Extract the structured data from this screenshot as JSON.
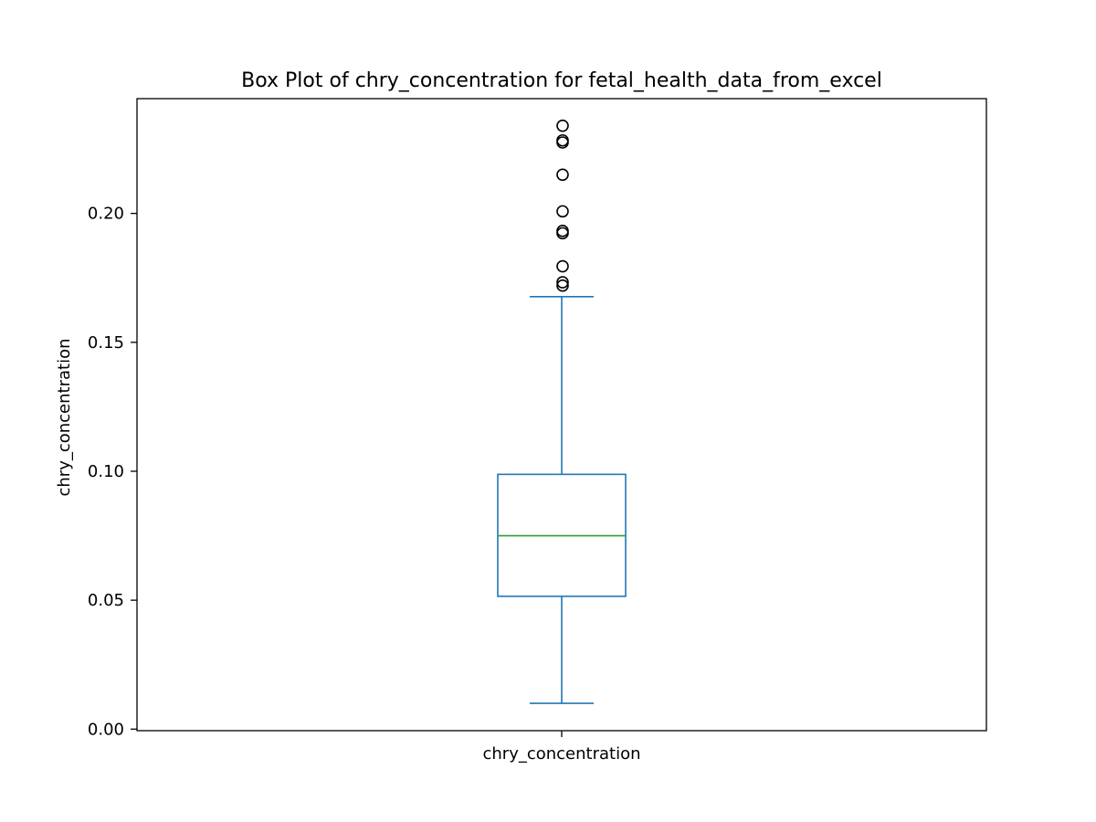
{
  "chart_data": {
    "type": "box",
    "title": "Box Plot of chry_concentration for fetal_health_data_from_excel",
    "xlabel": "chry_concentration",
    "ylabel": "chry_concentration",
    "categories": [
      "chry_concentration"
    ],
    "ylim": [
      -0.0006,
      0.2445
    ],
    "yticks": [
      0.0,
      0.05,
      0.1,
      0.15,
      0.2
    ],
    "ytick_labels": [
      "0.00",
      "0.05",
      "0.10",
      "0.15",
      "0.20"
    ],
    "grid": false,
    "boxes": [
      {
        "name": "chry_concentration",
        "whisker_low": 0.01,
        "q1": 0.0515,
        "median": 0.075,
        "q3": 0.0988,
        "whisker_high": 0.1677,
        "outliers": [
          0.172,
          0.1733,
          0.1795,
          0.1923,
          0.1932,
          0.2008,
          0.215,
          0.2275,
          0.2283,
          0.234
        ]
      }
    ],
    "colors": {
      "box": "#1f77b4",
      "median": "#2ca02c",
      "outlier": "#000000",
      "axes": "#000000"
    }
  }
}
